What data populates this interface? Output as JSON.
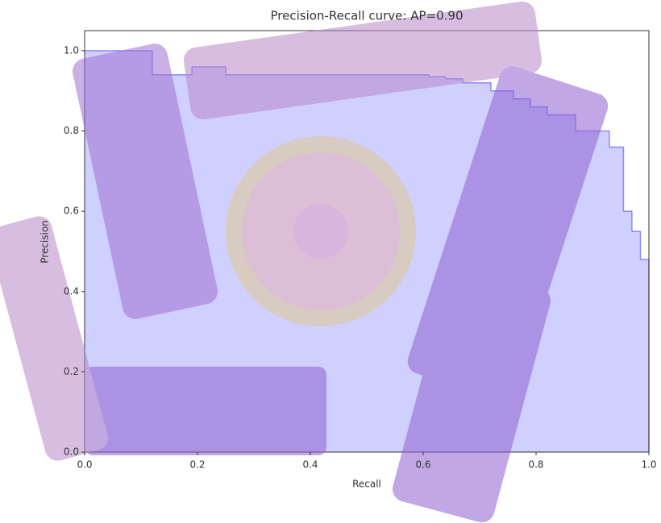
{
  "chart_data": {
    "type": "step-area",
    "title": "Precision-Recall curve: AP=0.90",
    "x_label": "Recall",
    "y_label": "Precision",
    "x": [
      0,
      0.12,
      0.19,
      0.25,
      0.61,
      0.64,
      0.67,
      0.72,
      0.76,
      0.79,
      0.82,
      0.87,
      0.93,
      0.955,
      0.97,
      0.985,
      1.0
    ],
    "values": [
      1.0,
      0.94,
      0.96,
      0.94,
      0.935,
      0.93,
      0.92,
      0.9,
      0.88,
      0.86,
      0.84,
      0.8,
      0.76,
      0.6,
      0.55,
      0.48,
      0.48
    ],
    "color": "#0000ff",
    "fill_color": "#c8c8ff",
    "xlim": [
      0,
      1.0
    ],
    "ylim": [
      0,
      1.05
    ],
    "xticks": [
      {
        "value": 0,
        "label": "0.0"
      },
      0.2,
      0.4,
      0.6,
      0.8,
      {
        "value": 1.0,
        "label": "1.0"
      }
    ],
    "yticks": [
      {
        "value": 0,
        "label": "0.0"
      },
      0.2,
      0.4,
      0.6,
      0.8,
      {
        "value": 1.0,
        "label": "1.0"
      }
    ]
  }
}
